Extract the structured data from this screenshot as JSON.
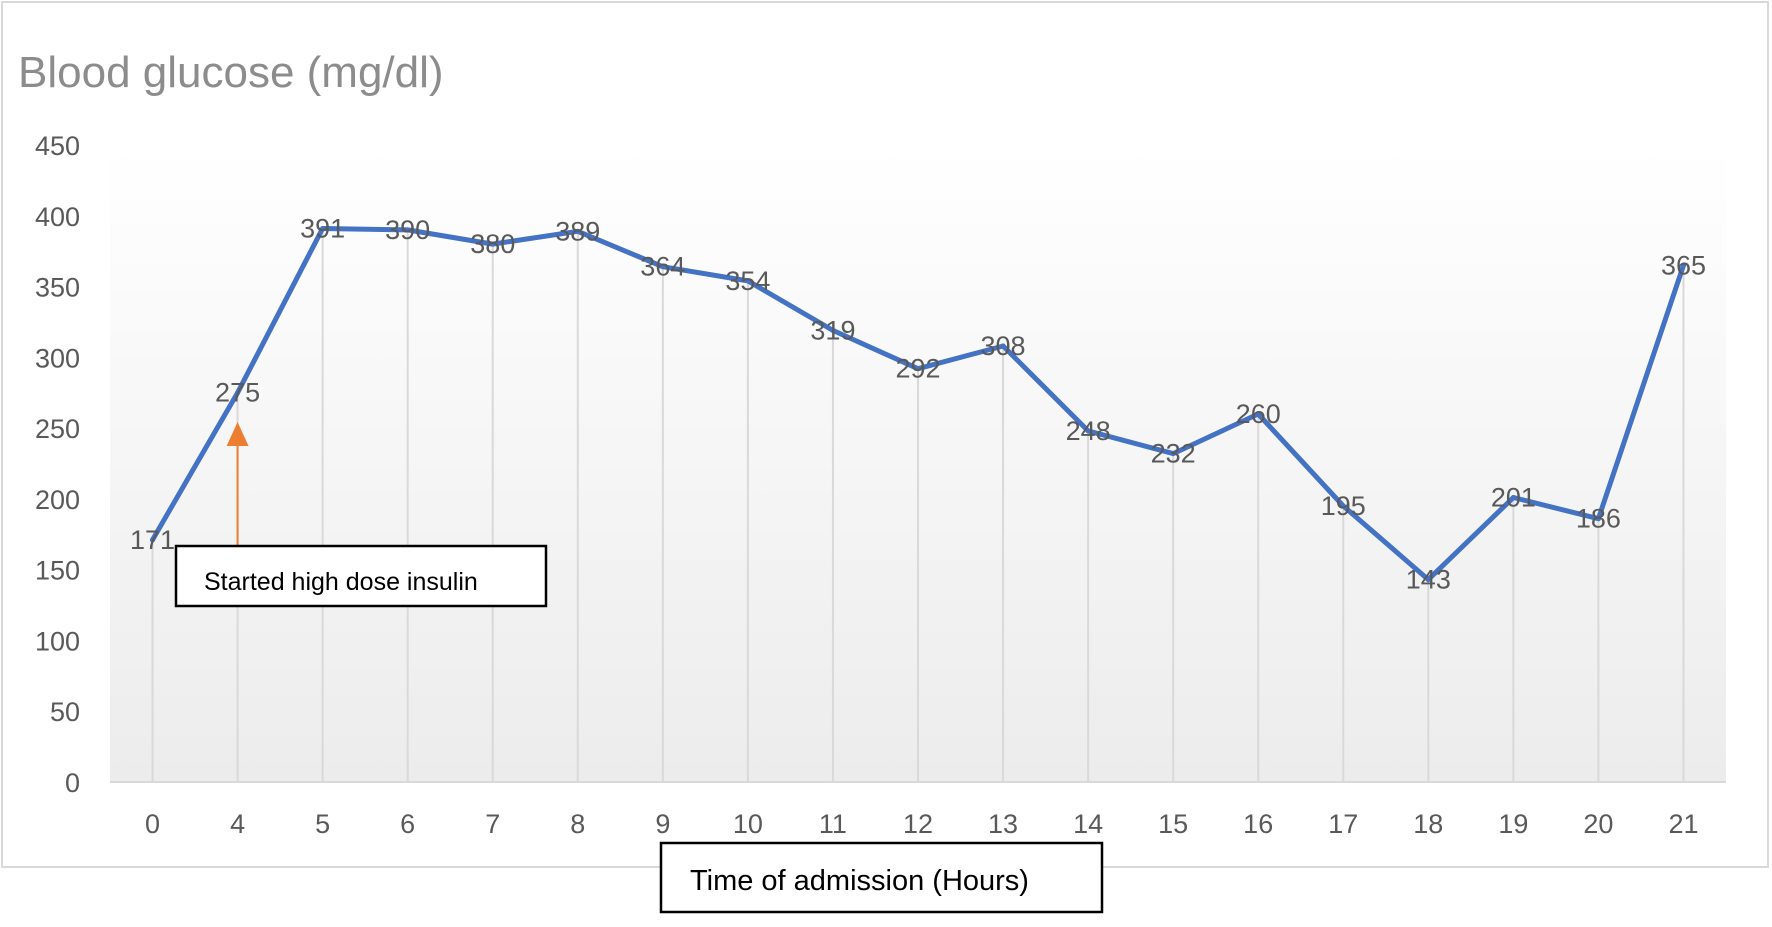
{
  "chart_data": {
    "type": "line",
    "title": "Blood glucose (mg/dl)",
    "xlabel": "Time of admission (Hours)",
    "categories": [
      "0",
      "4",
      "5",
      "6",
      "7",
      "8",
      "9",
      "10",
      "11",
      "12",
      "13",
      "14",
      "15",
      "16",
      "17",
      "18",
      "19",
      "20",
      "21"
    ],
    "values": [
      171,
      275,
      391,
      390,
      380,
      389,
      364,
      354,
      319,
      292,
      308,
      248,
      232,
      260,
      195,
      143,
      201,
      186,
      365
    ],
    "data_labels": [
      "171",
      "275",
      "391",
      "390",
      "380",
      "389",
      "364",
      "354",
      "319",
      "292",
      "308",
      "248",
      "232",
      "260",
      "195",
      "143",
      "201",
      "186",
      "365"
    ],
    "y_ticks": [
      "0",
      "50",
      "100",
      "150",
      "200",
      "250",
      "300",
      "350",
      "400",
      "450"
    ],
    "ylim": [
      0,
      450
    ],
    "grid": "vertical drop lines",
    "legend": "none",
    "annotation": {
      "text": "Started high dose insulin",
      "category": "4",
      "arrow_color": "#ED7D31"
    },
    "colors": {
      "line": "#4472C4",
      "text": "#595959",
      "title": "#8C8C8C",
      "gridline": "#D9D9D9"
    }
  }
}
